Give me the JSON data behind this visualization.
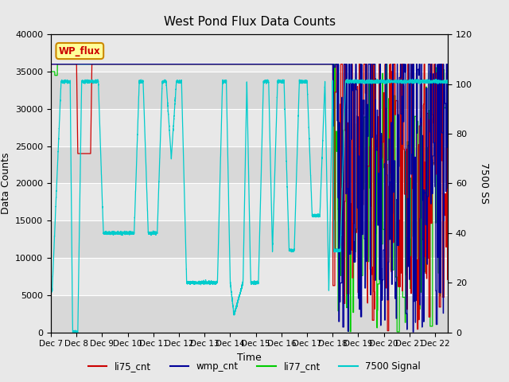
{
  "title": "West Pond Flux Data Counts",
  "xlabel": "Time",
  "ylabel_left": "Data Counts",
  "ylabel_right": "7500 SS",
  "ylim_left": [
    0,
    40000
  ],
  "ylim_right": [
    0,
    120
  ],
  "n_days": 15.5,
  "bg_color": "#e8e8e8",
  "plot_bg_light": "#e8e8e8",
  "plot_bg_dark": "#d0d0d0",
  "wp_flux_label": "WP_flux",
  "wp_flux_box_color": "#ffff99",
  "wp_flux_border_color": "#cc8800",
  "wp_flux_text_color": "#cc0000",
  "colors": {
    "li75_cnt": "#cc0000",
    "wmp_cnt": "#000099",
    "li77_cnt": "#00cc00",
    "signal7500": "#00cccc"
  },
  "xtick_labels": [
    "Dec 7",
    "Dec 8",
    "Dec 9",
    "Dec 10",
    "Dec 11",
    "Dec 12",
    "Dec 13",
    "Dec 14",
    "Dec 15",
    "Dec 16",
    "Dec 17",
    "Dec 18",
    "Dec 19",
    "Dec 20",
    "Dec 21",
    "Dec 22"
  ],
  "yticks_left": [
    0,
    5000,
    10000,
    15000,
    20000,
    25000,
    30000,
    35000,
    40000
  ],
  "yticks_right": [
    0,
    20,
    40,
    60,
    80,
    100,
    120
  ]
}
